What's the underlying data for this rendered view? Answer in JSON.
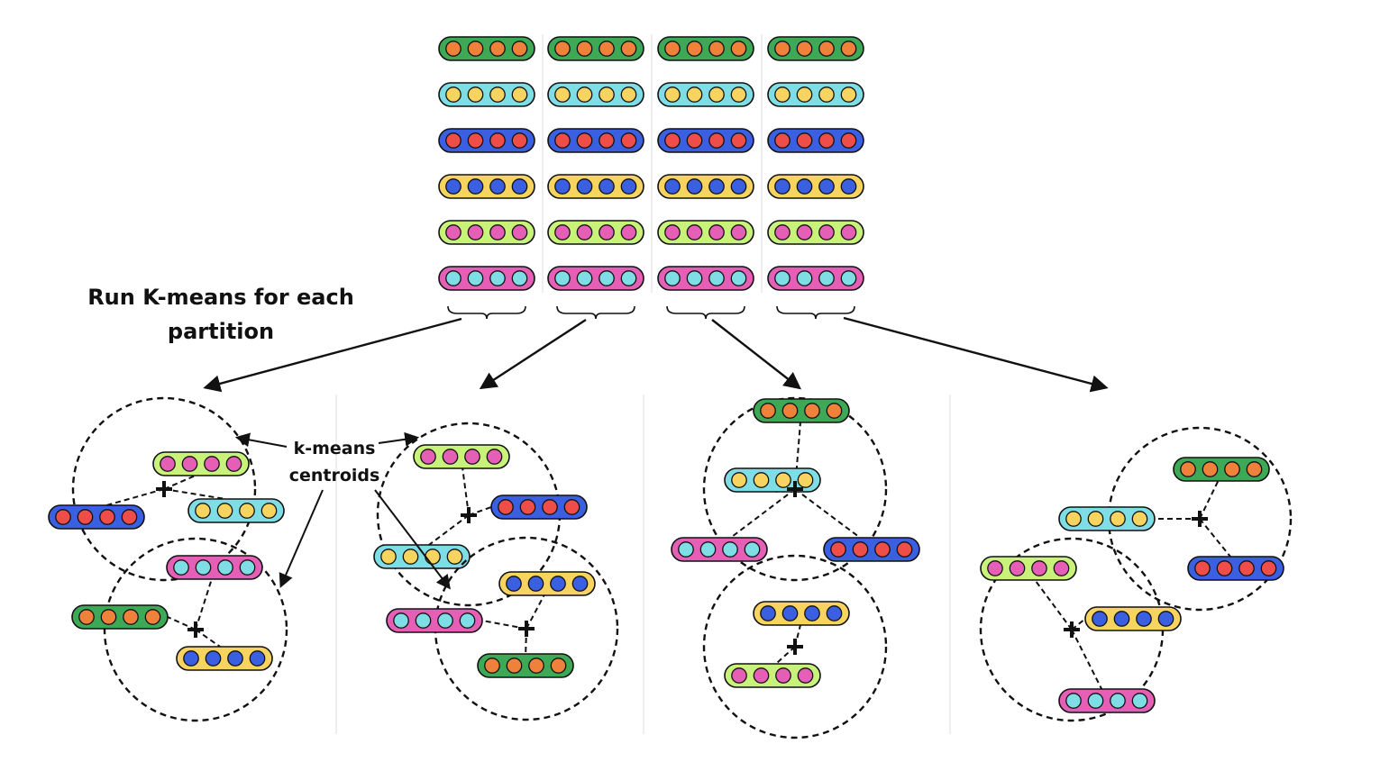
{
  "labels": {
    "heading_line1": "Run K-means for each",
    "heading_line2": "partition",
    "centroids_line1": "k-means",
    "centroids_line2": "centroids"
  },
  "colors": {
    "green": "#3da856",
    "cyan": "#7fdde6",
    "blue": "#3a5fe0",
    "yellow": "#f7d460",
    "lime": "#c8f27a",
    "pink": "#e65fb6",
    "orange": "#f0813a",
    "dot_yellow": "#f7d460",
    "red": "#ef4e48",
    "dot_blue": "#3a5fe0",
    "dot_pink": "#e65fb6",
    "dot_cyan": "#7fdde6"
  },
  "vector_rows": [
    {
      "bar": "green",
      "dot": "orange"
    },
    {
      "bar": "cyan",
      "dot": "dot_yellow"
    },
    {
      "bar": "blue",
      "dot": "red"
    },
    {
      "bar": "yellow",
      "dot": "dot_blue"
    },
    {
      "bar": "lime",
      "dot": "dot_pink"
    },
    {
      "bar": "pink",
      "dot": "dot_cyan"
    }
  ],
  "partitions_count": 4,
  "cluster_panels": [
    {
      "clusters": [
        {
          "members": [
            "lime",
            "cyan",
            "blue"
          ]
        },
        {
          "members": [
            "pink",
            "green",
            "yellow"
          ]
        }
      ]
    },
    {
      "clusters": [
        {
          "members": [
            "lime",
            "blue",
            "cyan"
          ]
        },
        {
          "members": [
            "yellow",
            "pink",
            "green"
          ]
        }
      ]
    },
    {
      "clusters": [
        {
          "members": [
            "green",
            "cyan",
            "pink",
            "blue"
          ]
        },
        {
          "members": [
            "yellow",
            "lime"
          ]
        }
      ]
    },
    {
      "clusters": [
        {
          "members": [
            "green",
            "cyan",
            "blue"
          ]
        },
        {
          "members": [
            "lime",
            "yellow",
            "pink"
          ]
        }
      ]
    }
  ]
}
